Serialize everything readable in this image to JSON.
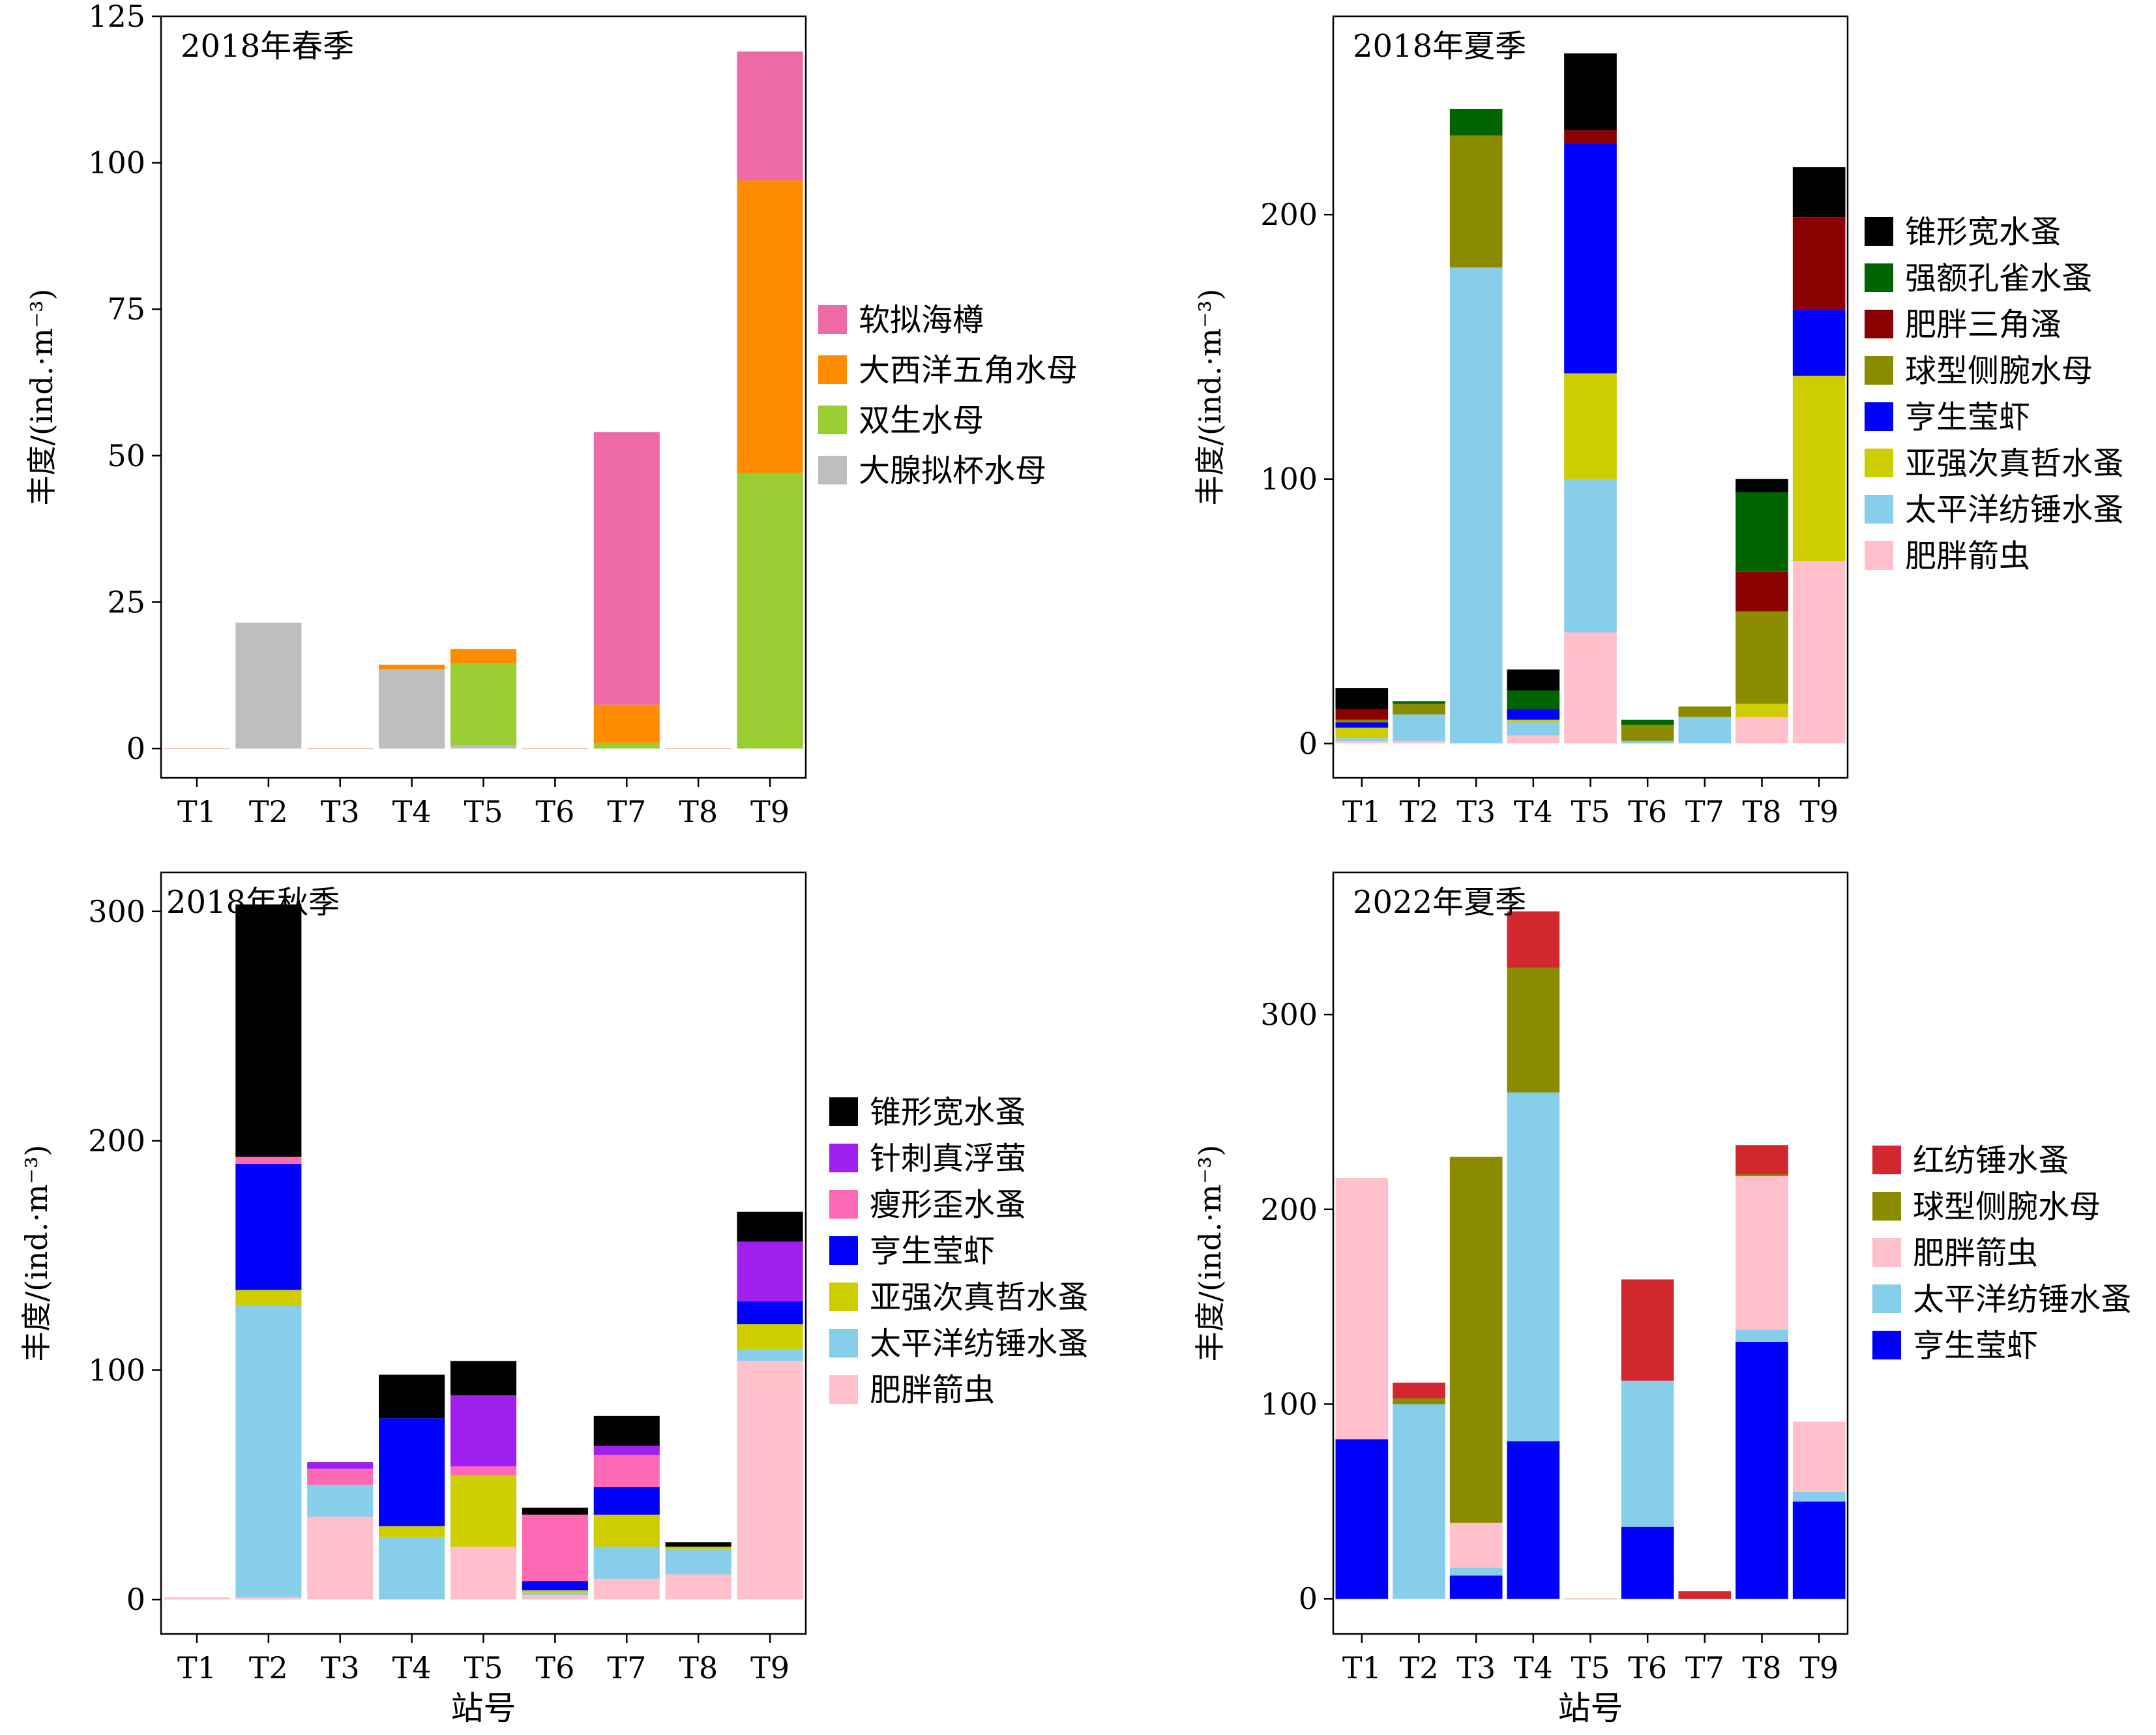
{
  "chart_data": [
    {
      "type": "bar",
      "stacked": true,
      "panel_label": "2018年春季",
      "ylabel": "丰度/(ind.·m⁻³)",
      "xlabel": "",
      "ylim": [
        -5,
        125
      ],
      "yticks": [
        0,
        25,
        50,
        75,
        100,
        125
      ],
      "categories": [
        "T1",
        "T2",
        "T3",
        "T4",
        "T5",
        "T6",
        "T7",
        "T8",
        "T9"
      ],
      "series": [
        {
          "name": "大腺拟杯水母",
          "color": "#BEBEBE",
          "values": [
            0,
            21.5,
            0,
            13.5,
            0.5,
            0,
            0,
            0,
            0
          ]
        },
        {
          "name": "双生水母",
          "color": "#9ACD32",
          "values": [
            0,
            0,
            0,
            0,
            14,
            0,
            1,
            0,
            47
          ]
        },
        {
          "name": "大西洋五角水母",
          "color": "#FF8C00",
          "values": [
            0,
            0,
            0,
            0.8,
            2.5,
            0,
            6.5,
            0,
            50
          ]
        },
        {
          "name": "软拟海樽",
          "color": "#EE6AA7",
          "values": [
            0,
            0,
            0,
            0,
            0,
            0,
            46.5,
            0,
            22
          ]
        }
      ]
    },
    {
      "type": "bar",
      "stacked": true,
      "panel_label": "2018年夏季",
      "ylabel": "丰度/(ind.·m⁻³)",
      "xlabel": "",
      "ylim": [
        -13,
        275
      ],
      "yticks": [
        0,
        100,
        200
      ],
      "categories": [
        "T1",
        "T2",
        "T3",
        "T4",
        "T5",
        "T6",
        "T7",
        "T8",
        "T9"
      ],
      "series": [
        {
          "name": "肥胖箭虫",
          "color": "#FFC0CB",
          "values": [
            1,
            1,
            0,
            3,
            42,
            0,
            0,
            10,
            69
          ]
        },
        {
          "name": "太平洋纺锤水蚤",
          "color": "#87CEEB",
          "values": [
            1,
            10,
            180,
            5,
            58,
            1,
            10,
            0,
            0
          ]
        },
        {
          "name": "亚强次真哲水蚤",
          "color": "#CDCD00",
          "values": [
            4,
            0,
            0,
            1,
            40,
            0,
            0,
            5,
            70
          ]
        },
        {
          "name": "亨生莹虾",
          "color": "#0000FF",
          "values": [
            2,
            0,
            0,
            4,
            87,
            0,
            0,
            0,
            25
          ]
        },
        {
          "name": "球型侧腕水母",
          "color": "#8B8B00",
          "values": [
            1,
            4,
            50,
            0,
            0,
            6,
            4,
            35,
            0
          ]
        },
        {
          "name": "肥胖三角溞",
          "color": "#8B0000",
          "values": [
            4,
            0,
            0,
            0,
            5,
            0,
            0,
            15,
            35
          ]
        },
        {
          "name": "强额孔雀水蚤",
          "color": "#006400",
          "values": [
            0,
            1,
            10,
            7,
            0,
            2,
            0,
            30,
            0
          ]
        },
        {
          "name": "锥形宽水蚤",
          "color": "#000000",
          "values": [
            8,
            0,
            0,
            8,
            29,
            0,
            0,
            5,
            19
          ]
        }
      ]
    },
    {
      "type": "bar",
      "stacked": true,
      "panel_label": "2018年秋季",
      "ylabel": "丰度/(ind.·m⁻³)",
      "xlabel": "站号",
      "ylim": [
        -15,
        317
      ],
      "yticks": [
        0,
        100,
        200,
        300
      ],
      "categories": [
        "T1",
        "T2",
        "T3",
        "T4",
        "T5",
        "T6",
        "T7",
        "T8",
        "T9"
      ],
      "series": [
        {
          "name": "肥胖箭虫",
          "color": "#FFC0CB",
          "values": [
            1,
            1,
            36,
            0,
            23,
            2,
            9,
            11,
            104
          ]
        },
        {
          "name": "太平洋纺锤水蚤",
          "color": "#87CEEB",
          "values": [
            0,
            127,
            14,
            27,
            0,
            1,
            14,
            11,
            5
          ]
        },
        {
          "name": "亚强次真哲水蚤",
          "color": "#CDCD00",
          "values": [
            0,
            7,
            0,
            5,
            31,
            1,
            14,
            1,
            11
          ]
        },
        {
          "name": "亨生莹虾",
          "color": "#0000FF",
          "values": [
            0,
            55,
            0,
            47,
            0,
            4,
            12,
            0,
            10
          ]
        },
        {
          "name": "瘦形歪水蚤",
          "color": "#FF69B4",
          "values": [
            0,
            3,
            7,
            0,
            4,
            29,
            14,
            0,
            0
          ]
        },
        {
          "name": "针刺真浮萤",
          "color": "#A020F0",
          "values": [
            0,
            0,
            3,
            0,
            31,
            0,
            4,
            0,
            26
          ]
        },
        {
          "name": "锥形宽水蚤",
          "color": "#000000",
          "values": [
            0,
            110,
            0,
            19,
            15,
            3,
            13,
            2,
            13
          ]
        }
      ]
    },
    {
      "type": "bar",
      "stacked": true,
      "panel_label": "2022年夏季",
      "ylabel": "丰度/(ind.·m⁻³)",
      "xlabel": "站号",
      "ylim": [
        -18,
        373
      ],
      "yticks": [
        0,
        100,
        200,
        300
      ],
      "categories": [
        "T1",
        "T2",
        "T3",
        "T4",
        "T5",
        "T6",
        "T7",
        "T8",
        "T9"
      ],
      "series": [
        {
          "name": "亨生莹虾",
          "color": "#0000FF",
          "values": [
            82,
            0,
            12,
            81,
            0,
            37,
            0,
            132,
            50
          ]
        },
        {
          "name": "太平洋纺锤水蚤",
          "color": "#87CEEB",
          "values": [
            0,
            100,
            4,
            179,
            0,
            75,
            0,
            6,
            5
          ]
        },
        {
          "name": "肥胖箭虫",
          "color": "#FFC0CB",
          "values": [
            134,
            0,
            23,
            0,
            0,
            0,
            0,
            79,
            36
          ]
        },
        {
          "name": "球型侧腕水母",
          "color": "#8B8B00",
          "values": [
            0,
            3,
            188,
            64,
            0,
            0,
            0,
            1,
            0
          ]
        },
        {
          "name": "红纺锤水蚤",
          "color": "#D0282E",
          "values": [
            0,
            8,
            0,
            29,
            0,
            52,
            4,
            15,
            0
          ]
        }
      ]
    }
  ]
}
